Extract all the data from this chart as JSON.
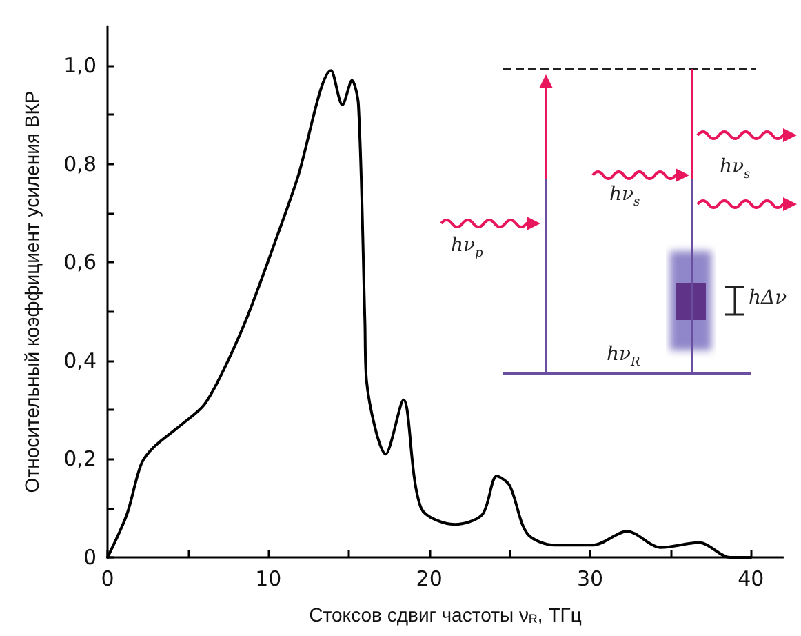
{
  "chart_data": {
    "type": "line",
    "xlabel": "Стоксов сдвиг частоты ν$_{R}$, ТГц",
    "ylabel": "Относительный коэффициент усиления ВКР",
    "x": [
      0,
      1.2,
      2.1,
      2.9,
      4.6,
      6.0,
      7.2,
      8.7,
      10.4,
      11.8,
      13.9,
      14.6,
      15.2,
      15.6,
      16.0,
      16.1,
      17.3,
      18.4,
      19.5,
      21.6,
      23.3,
      24.2,
      25.0,
      26.1,
      27.8,
      30.2,
      32.3,
      34.4,
      36.8,
      38.7,
      40
    ],
    "series": [
      {
        "color": "#000000",
        "values": [
          0,
          0.087,
          0.19,
          0.225,
          0.27,
          0.31,
          0.38,
          0.49,
          0.64,
          0.77,
          0.99,
          0.92,
          0.97,
          0.92,
          0.48,
          0.36,
          0.21,
          0.32,
          0.1,
          0.067,
          0.087,
          0.165,
          0.146,
          0.048,
          0.025,
          0.025,
          0.053,
          0.02,
          0.03,
          0,
          0
        ]
      }
    ],
    "xlim": [
      0,
      42
    ],
    "ylim": [
      0,
      1.08
    ],
    "xticks": [
      0,
      {
        "value": 5,
        "label": null
      },
      10,
      {
        "value": 15,
        "label": null
      },
      20,
      {
        "value": 25,
        "label": null
      },
      30,
      {
        "value": 35,
        "label": null
      },
      40
    ],
    "yticks": [
      0,
      {
        "value": 0.1,
        "label": null
      },
      {
        "value": 0.2,
        "label": "0,2"
      },
      {
        "value": 0.3,
        "label": null
      },
      {
        "value": 0.4,
        "label": "0,4"
      },
      {
        "value": 0.5,
        "label": null
      },
      {
        "value": 0.6,
        "label": "0,6"
      },
      {
        "value": 0.7,
        "label": null
      },
      {
        "value": 0.8,
        "label": "0,8"
      },
      {
        "value": 0.9,
        "label": null
      },
      {
        "value": 1.0,
        "label": "1,0"
      }
    ],
    "annotations": [
      "hν$_{p}$",
      "hν$_{s}$",
      "hν$_{s}$",
      "hΔν",
      "hν$_{R}$"
    ],
    "grid": false,
    "marker": "none",
    "line_style": "solid"
  }
}
